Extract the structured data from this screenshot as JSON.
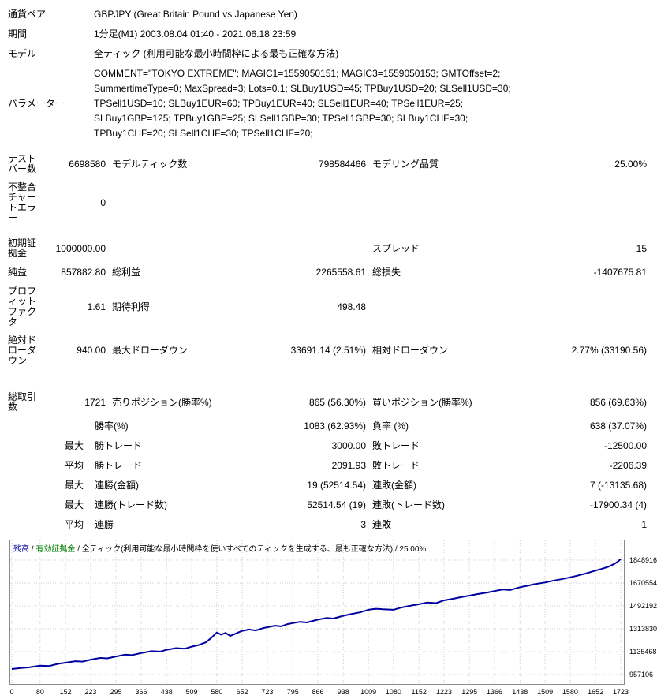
{
  "report": {
    "top_rows": [
      {
        "label": "通貨ペア",
        "value": "GBPJPY (Great Britain Pound vs Japanese Yen)"
      },
      {
        "label": "期間",
        "value": "1分足(M1) 2003.08.04 01:40 - 2021.06.18 23:59"
      },
      {
        "label": "モデル",
        "value": "全ティック (利用可能な最小時間枠による最も正確な方法)"
      },
      {
        "label": "パラメーター",
        "value": "COMMENT=\"TOKYO EXTREME\"; MAGIC1=1559050151; MAGIC3=1559050153; GMTOffset=2; SummertimeType=0; MaxSpread=3; Lots=0.1; SLBuy1USD=45; TPBuy1USD=20; SLSell1USD=30; TPSell1USD=10; SLBuy1EUR=60; TPBuy1EUR=40; SLSell1EUR=40; TPSell1EUR=25; SLBuy1GBP=125; TPBuy1GBP=25; SLSell1GBP=30; TPSell1GBP=30; SLBuy1CHF=30; TPBuy1CHF=20; SLSell1CHF=30; TPSell1CHF=20;"
      }
    ],
    "stats_rows": [
      {
        "cells": [
          "テストバー数",
          "6698580",
          "モデルティック数",
          "798584466",
          "モデリング品質",
          "25.00%"
        ]
      },
      {
        "cells": [
          "不整合チャートエラー",
          "0",
          "",
          "",
          "",
          ""
        ]
      },
      {
        "cells": [
          "初期証拠金",
          "1000000.00",
          "",
          "",
          "スプレッド",
          "15"
        ]
      },
      {
        "cells": [
          "純益",
          "857882.80",
          "総利益",
          "2265558.61",
          "総損失",
          "-1407675.81"
        ]
      },
      {
        "cells": [
          "プロフィットファクタ",
          "1.61",
          "期待利得",
          "498.48",
          "",
          ""
        ]
      },
      {
        "cells": [
          "絶対ドローダウン",
          "940.00",
          "最大ドローダウン",
          "33691.14 (2.51%)",
          "相対ドローダウン",
          "2.77% (33190.56)"
        ]
      },
      {
        "cells": [
          "総取引数",
          "1721",
          "売りポジション(勝率%)",
          "865 (56.30%)",
          "買いポジション(勝率%)",
          "856 (69.63%)"
        ]
      },
      {
        "cells": [
          "",
          "",
          "勝率(%)",
          "1083 (62.93%)",
          "負率 (%)",
          "638 (37.07%)"
        ],
        "indent": true
      },
      {
        "cells": [
          "",
          "最大",
          "勝トレード",
          "3000.00",
          "敗トレード",
          "-12500.00"
        ],
        "indent": true
      },
      {
        "cells": [
          "",
          "平均",
          "勝トレード",
          "2091.93",
          "敗トレード",
          "-2206.39"
        ],
        "indent": true
      },
      {
        "cells": [
          "",
          "最大",
          "連勝(金額)",
          "19 (52514.54)",
          "連敗(金額)",
          "7 (-13135.68)"
        ],
        "indent": true
      },
      {
        "cells": [
          "",
          "最大",
          "連勝(トレード数)",
          "52514.54 (19)",
          "連敗(トレード数)",
          "-17900.34 (4)"
        ],
        "indent": true
      },
      {
        "cells": [
          "",
          "平均",
          "連勝",
          "3",
          "連敗",
          "1"
        ],
        "indent": true
      }
    ]
  },
  "chart_legend": {
    "balance": "残高",
    "equity": "有効証拠金",
    "model": "全ティック(利用可能な最小時間枠を使いすべてのティックを生成する、最も正確な方法)",
    "quality": "25.00%",
    "sep": " / "
  },
  "chart_data": {
    "type": "line",
    "title": "残高 / 有効証拠金 / 全ティック(利用可能な最小時間枠を使いすべてのティックを生成する、最も正確な方法) / 25.00%",
    "xlabel": "",
    "ylabel": "",
    "legend_position": "top-left-inside",
    "grid": true,
    "xlim": [
      0,
      1723
    ],
    "ylim": [
      883000,
      2003000
    ],
    "y_ticks": [
      1848916,
      1670554,
      1492192,
      1313830,
      1135468,
      957106
    ],
    "x_ticks": [
      0,
      80,
      152,
      223,
      295,
      366,
      438,
      509,
      580,
      652,
      723,
      795,
      866,
      938,
      1009,
      1080,
      1152,
      1223,
      1295,
      1366,
      1438,
      1509,
      1580,
      1652,
      1723
    ],
    "series": [
      {
        "name": "残高",
        "color": "#0000A0",
        "points": [
          [
            0,
            1000000
          ],
          [
            25,
            1008000
          ],
          [
            50,
            1013000
          ],
          [
            80,
            1026000
          ],
          [
            105,
            1023000
          ],
          [
            130,
            1040000
          ],
          [
            152,
            1049000
          ],
          [
            180,
            1061000
          ],
          [
            200,
            1058000
          ],
          [
            223,
            1073000
          ],
          [
            250,
            1086000
          ],
          [
            270,
            1083000
          ],
          [
            295,
            1098000
          ],
          [
            320,
            1112000
          ],
          [
            340,
            1108000
          ],
          [
            366,
            1124000
          ],
          [
            395,
            1139000
          ],
          [
            420,
            1136000
          ],
          [
            438,
            1150000
          ],
          [
            465,
            1163000
          ],
          [
            490,
            1159000
          ],
          [
            509,
            1175000
          ],
          [
            530,
            1188000
          ],
          [
            550,
            1210000
          ],
          [
            565,
            1245000
          ],
          [
            580,
            1285000
          ],
          [
            592,
            1268000
          ],
          [
            605,
            1282000
          ],
          [
            618,
            1258000
          ],
          [
            632,
            1275000
          ],
          [
            652,
            1298000
          ],
          [
            672,
            1308000
          ],
          [
            690,
            1300000
          ],
          [
            710,
            1318000
          ],
          [
            723,
            1326000
          ],
          [
            745,
            1338000
          ],
          [
            762,
            1333000
          ],
          [
            780,
            1350000
          ],
          [
            795,
            1358000
          ],
          [
            815,
            1368000
          ],
          [
            835,
            1363000
          ],
          [
            866,
            1385000
          ],
          [
            890,
            1398000
          ],
          [
            910,
            1394000
          ],
          [
            938,
            1415000
          ],
          [
            960,
            1428000
          ],
          [
            985,
            1442000
          ],
          [
            1009,
            1462000
          ],
          [
            1030,
            1470000
          ],
          [
            1050,
            1466000
          ],
          [
            1080,
            1462000
          ],
          [
            1100,
            1478000
          ],
          [
            1125,
            1492000
          ],
          [
            1152,
            1505000
          ],
          [
            1175,
            1518000
          ],
          [
            1200,
            1514000
          ],
          [
            1223,
            1535000
          ],
          [
            1250,
            1548000
          ],
          [
            1270,
            1560000
          ],
          [
            1295,
            1572000
          ],
          [
            1320,
            1585000
          ],
          [
            1345,
            1596000
          ],
          [
            1366,
            1608000
          ],
          [
            1390,
            1620000
          ],
          [
            1410,
            1616000
          ],
          [
            1438,
            1638000
          ],
          [
            1460,
            1650000
          ],
          [
            1480,
            1662000
          ],
          [
            1509,
            1675000
          ],
          [
            1530,
            1688000
          ],
          [
            1555,
            1700000
          ],
          [
            1580,
            1715000
          ],
          [
            1600,
            1728000
          ],
          [
            1620,
            1742000
          ],
          [
            1640,
            1758000
          ],
          [
            1652,
            1768000
          ],
          [
            1670,
            1782000
          ],
          [
            1690,
            1800000
          ],
          [
            1705,
            1820000
          ],
          [
            1715,
            1838000
          ],
          [
            1723,
            1857883
          ]
        ]
      }
    ]
  }
}
